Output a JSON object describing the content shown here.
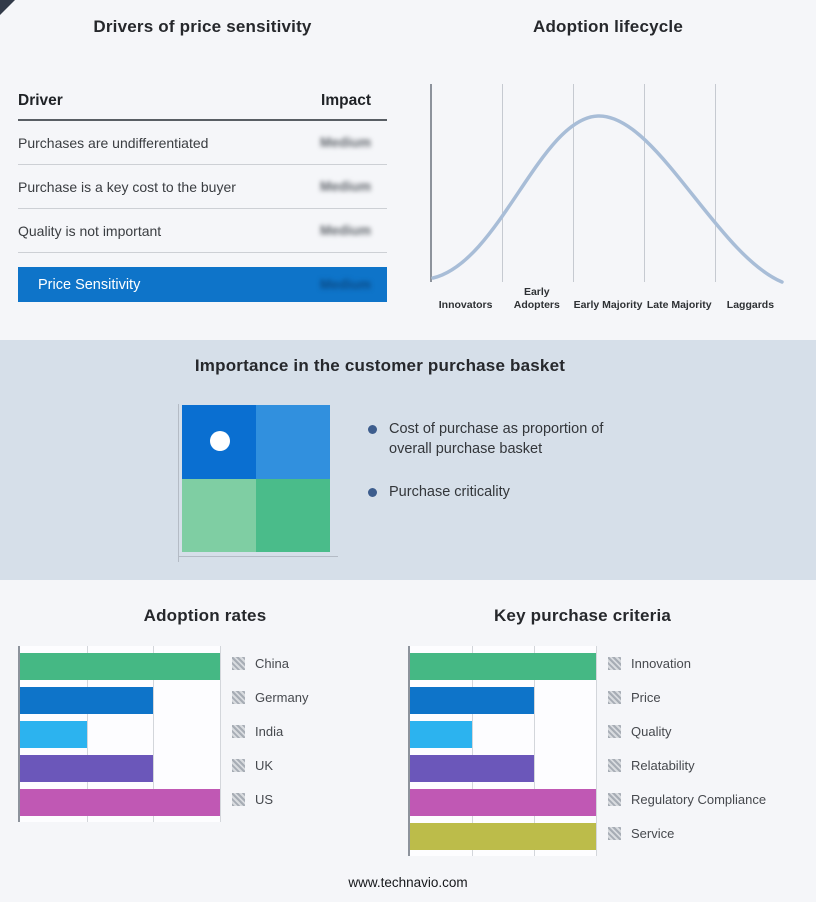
{
  "drivers_panel": {
    "title": "Drivers of price sensitivity",
    "columns": {
      "driver": "Driver",
      "impact": "Impact"
    },
    "rows": [
      {
        "driver": "Purchases are undifferentiated",
        "impact": "Medium"
      },
      {
        "driver": "Purchase is a key cost to the buyer",
        "impact": "Medium"
      },
      {
        "driver": "Quality is not important",
        "impact": "Medium"
      }
    ],
    "impact_values_blurred": true,
    "summary": {
      "label": "Price Sensitivity",
      "impact": "Medium",
      "bg": "#0e74c9"
    }
  },
  "basket_panel": {
    "title": "Importance in the customer purchase basket",
    "band_bg": "#d6dfe9",
    "bullets": [
      "Cost of purchase as proportion of overall purchase basket",
      "Purchase criticality"
    ],
    "quadrant_colors": {
      "top_left": "#0a6fd1",
      "top_right": "#3190de",
      "bottom_left": "#7fcea3",
      "bottom_right": "#4abc8a"
    }
  },
  "chart_data": [
    {
      "type": "line",
      "title": "Adoption lifecycle",
      "x_categories": [
        "Innovators",
        "Early Adopters",
        "Early Majority",
        "Late Majority",
        "Laggards"
      ],
      "shape": "bell curve rising from Innovators, peaking over Early Majority, falling to Laggards",
      "curve_color": "#a8bdd7",
      "grid": true,
      "legend_position": "none"
    },
    {
      "type": "bar",
      "orientation": "horizontal",
      "title": "Adoption rates",
      "categories": [
        "China",
        "Germany",
        "India",
        "UK",
        "US"
      ],
      "values": [
        3,
        2,
        1,
        2,
        3
      ],
      "xlim": [
        0,
        3
      ],
      "grid": true,
      "legend_position": "right",
      "colors": [
        "#45b884",
        "#0e74c9",
        "#2cb3ef",
        "#6b57ba",
        "#c058b4"
      ]
    },
    {
      "type": "bar",
      "orientation": "horizontal",
      "title": "Key purchase criteria",
      "categories": [
        "Innovation",
        "Price",
        "Quality",
        "Relatability",
        "Regulatory Compliance",
        "Service"
      ],
      "values": [
        3,
        2,
        1,
        2,
        3,
        3
      ],
      "xlim": [
        0,
        3
      ],
      "grid": true,
      "legend_position": "right",
      "colors": [
        "#45b884",
        "#0e74c9",
        "#2cb3ef",
        "#6b57ba",
        "#c058b4",
        "#bcbc4a"
      ]
    }
  ],
  "footer": {
    "url": "www.technavio.com"
  }
}
